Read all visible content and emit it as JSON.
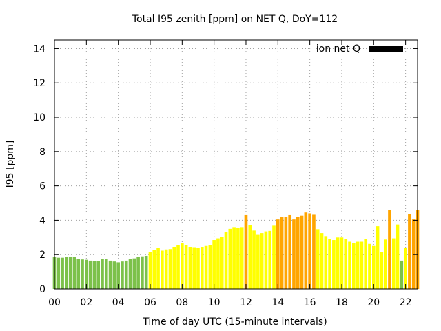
{
  "chart_data": {
    "type": "bar",
    "title": "Total I95 zenith [ppm] on NET Q, DoY=112",
    "xlabel": "Time of day UTC (15-minute intervals)",
    "ylabel": "I95 [ppm]",
    "xlim": [
      0,
      22.75
    ],
    "ylim": [
      0,
      14.5
    ],
    "x_ticks": [
      "00",
      "02",
      "04",
      "06",
      "08",
      "10",
      "12",
      "14",
      "16",
      "18",
      "20",
      "22"
    ],
    "y_ticks": [
      "0",
      "2",
      "4",
      "6",
      "8",
      "10",
      "12",
      "14"
    ],
    "grid": true,
    "legend": {
      "label": "ion net Q",
      "placement": "top-right",
      "color": "#000000"
    },
    "colors": {
      "green": "#7cc14a",
      "yellow": "#ffff00",
      "orange": "#ffa500"
    },
    "bar_step_hours": 0.25,
    "values": [
      1.85,
      1.82,
      1.82,
      1.87,
      1.87,
      1.85,
      1.76,
      1.72,
      1.7,
      1.65,
      1.62,
      1.62,
      1.73,
      1.73,
      1.65,
      1.6,
      1.55,
      1.6,
      1.65,
      1.75,
      1.78,
      1.85,
      1.9,
      1.93,
      2.15,
      2.25,
      2.37,
      2.23,
      2.3,
      2.32,
      2.45,
      2.55,
      2.65,
      2.55,
      2.45,
      2.43,
      2.4,
      2.45,
      2.5,
      2.55,
      2.85,
      2.95,
      3.05,
      3.3,
      3.5,
      3.6,
      3.55,
      3.6,
      4.3,
      3.7,
      3.4,
      3.15,
      3.25,
      3.35,
      3.38,
      3.68,
      4.05,
      4.2,
      4.2,
      4.3,
      4.05,
      4.2,
      4.27,
      4.45,
      4.4,
      4.32,
      3.48,
      3.25,
      3.08,
      2.9,
      2.85,
      3.0,
      3.0,
      2.9,
      2.75,
      2.65,
      2.75,
      2.75,
      2.92,
      2.62,
      2.5,
      3.65,
      2.15,
      2.88,
      4.6,
      2.95,
      3.75,
      1.65,
      2.38,
      4.35,
      4.05,
      4.6
    ],
    "value_colors": [
      "green",
      "green",
      "green",
      "green",
      "green",
      "green",
      "green",
      "green",
      "green",
      "green",
      "green",
      "green",
      "green",
      "green",
      "green",
      "green",
      "green",
      "green",
      "green",
      "green",
      "green",
      "green",
      "green",
      "green",
      "yellow",
      "yellow",
      "yellow",
      "yellow",
      "yellow",
      "yellow",
      "yellow",
      "yellow",
      "yellow",
      "yellow",
      "yellow",
      "yellow",
      "yellow",
      "yellow",
      "yellow",
      "yellow",
      "yellow",
      "yellow",
      "yellow",
      "yellow",
      "yellow",
      "yellow",
      "yellow",
      "yellow",
      "orange",
      "yellow",
      "yellow",
      "yellow",
      "yellow",
      "yellow",
      "yellow",
      "yellow",
      "orange",
      "orange",
      "orange",
      "orange",
      "orange",
      "orange",
      "orange",
      "orange",
      "orange",
      "orange",
      "yellow",
      "yellow",
      "yellow",
      "yellow",
      "yellow",
      "yellow",
      "yellow",
      "yellow",
      "yellow",
      "yellow",
      "yellow",
      "yellow",
      "yellow",
      "yellow",
      "yellow",
      "yellow",
      "yellow",
      "yellow",
      "orange",
      "yellow",
      "yellow",
      "green",
      "yellow",
      "orange",
      "orange",
      "orange"
    ]
  }
}
